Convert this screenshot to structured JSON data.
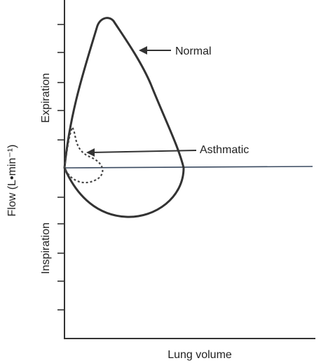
{
  "axes": {
    "y_label": "Flow (L•min⁻¹)",
    "x_label": "Lung volume",
    "upper_label": "Expiration",
    "lower_label": "Inspiration"
  },
  "annotations": {
    "normal": "Normal",
    "asthmatic": "Asthmatic"
  }
}
